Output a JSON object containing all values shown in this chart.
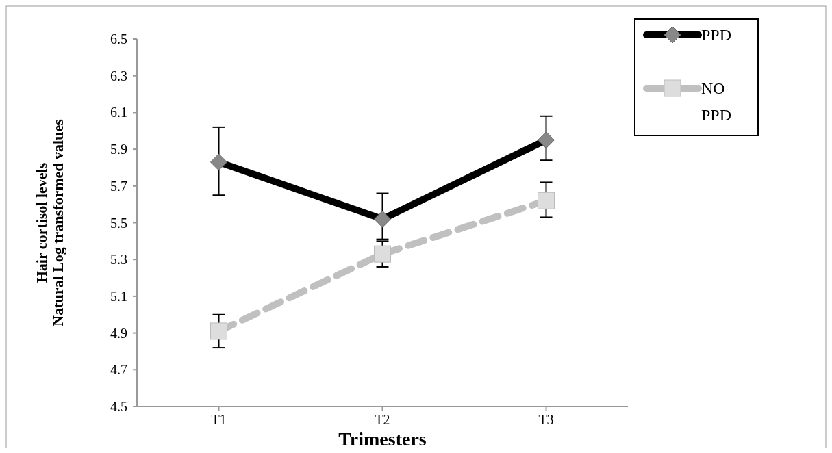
{
  "chart_data": {
    "type": "line",
    "xlabel": "Trimesters",
    "ylabel": "Hair cortisol levels\nNatural Log transformed values",
    "categories": [
      "T1",
      "T2",
      "T3"
    ],
    "series": [
      {
        "name": "PPD",
        "color": "#000000",
        "values": [
          5.83,
          5.52,
          5.95
        ],
        "errors": [
          [
            5.65,
            6.02
          ],
          [
            5.41,
            5.66
          ],
          [
            5.84,
            6.08
          ]
        ],
        "marker": "diamond",
        "line_style": "solid"
      },
      {
        "name": "NO PPD",
        "color": "#c0c0c0",
        "values": [
          4.91,
          5.33,
          5.62
        ],
        "errors": [
          [
            4.82,
            5.0
          ],
          [
            5.26,
            5.4
          ],
          [
            5.53,
            5.72
          ]
        ],
        "marker": "square",
        "line_style": "dashed"
      }
    ],
    "ylim": [
      4.5,
      6.5
    ],
    "yticks": [
      {
        "value": 4.5,
        "label": "4.5"
      },
      {
        "value": 4.7,
        "label": "4.7"
      },
      {
        "value": 4.9,
        "label": "4.9"
      },
      {
        "value": 5.1,
        "label": "5.1"
      },
      {
        "value": 5.3,
        "label": "5.3"
      },
      {
        "value": 5.5,
        "label": "5.5"
      },
      {
        "value": 5.7,
        "label": "5.7"
      },
      {
        "value": 5.9,
        "label": "5.9"
      },
      {
        "value": 6.1,
        "label": "6.1"
      },
      {
        "value": 6.3,
        "label": "6.3"
      },
      {
        "value": 6.5,
        "label": "6.5"
      }
    ],
    "grid": false,
    "legend": "top right"
  }
}
